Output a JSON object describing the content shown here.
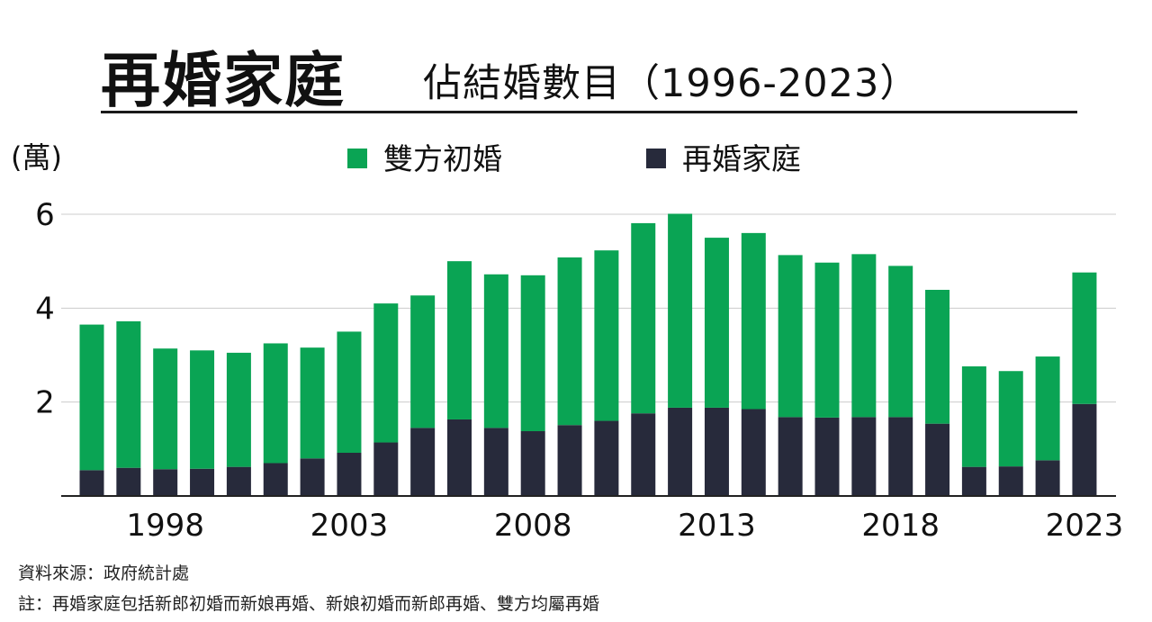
{
  "header": {
    "title": "再婚家庭",
    "subtitle": "佔結婚數目（1996-2023）"
  },
  "unit_label": "(萬)",
  "legend": [
    {
      "label": "雙方初婚",
      "color": "#0aa454"
    },
    {
      "label": "再婚家庭",
      "color": "#272a3b"
    }
  ],
  "colors": {
    "first_marriage": "#0aa454",
    "remarriage": "#272a3b",
    "grid": "#cccccc",
    "axis": "#222222"
  },
  "chart_data": {
    "type": "bar",
    "stacked": true,
    "categories": [
      "1996",
      "1997",
      "1998",
      "1999",
      "2000",
      "2001",
      "2002",
      "2003",
      "2004",
      "2005",
      "2006",
      "2007",
      "2008",
      "2009",
      "2010",
      "2011",
      "2012",
      "2013",
      "2014",
      "2015",
      "2016",
      "2017",
      "2018",
      "2019",
      "2020",
      "2021",
      "2022",
      "2023"
    ],
    "x_tick_labels": [
      "1998",
      "2003",
      "2008",
      "2013",
      "2018",
      "2023"
    ],
    "y_ticks": [
      "2",
      "4",
      "6"
    ],
    "ylim": [
      0,
      6
    ],
    "grid": true,
    "legend_position": "top",
    "series": [
      {
        "name": "再婚家庭",
        "values": [
          0.55,
          0.6,
          0.57,
          0.58,
          0.62,
          0.7,
          0.8,
          0.92,
          1.14,
          1.45,
          1.63,
          1.45,
          1.38,
          1.51,
          1.6,
          1.76,
          1.88,
          1.88,
          1.85,
          1.68,
          1.67,
          1.68,
          1.68,
          1.54,
          0.62,
          0.63,
          0.76,
          1.96
        ]
      },
      {
        "name": "雙方初婚",
        "values": [
          3.1,
          3.12,
          2.57,
          2.52,
          2.43,
          2.55,
          2.36,
          2.58,
          2.96,
          2.82,
          3.37,
          3.27,
          3.32,
          3.57,
          3.63,
          4.05,
          4.13,
          3.62,
          3.75,
          3.45,
          3.3,
          3.47,
          3.22,
          2.85,
          2.14,
          2.03,
          2.21,
          2.8
        ]
      }
    ]
  },
  "footer": {
    "source": "資料來源：政府統計處",
    "note": "註：再婚家庭包括新郎初婚而新娘再婚、新娘初婚而新郎再婚、雙方均屬再婚"
  }
}
